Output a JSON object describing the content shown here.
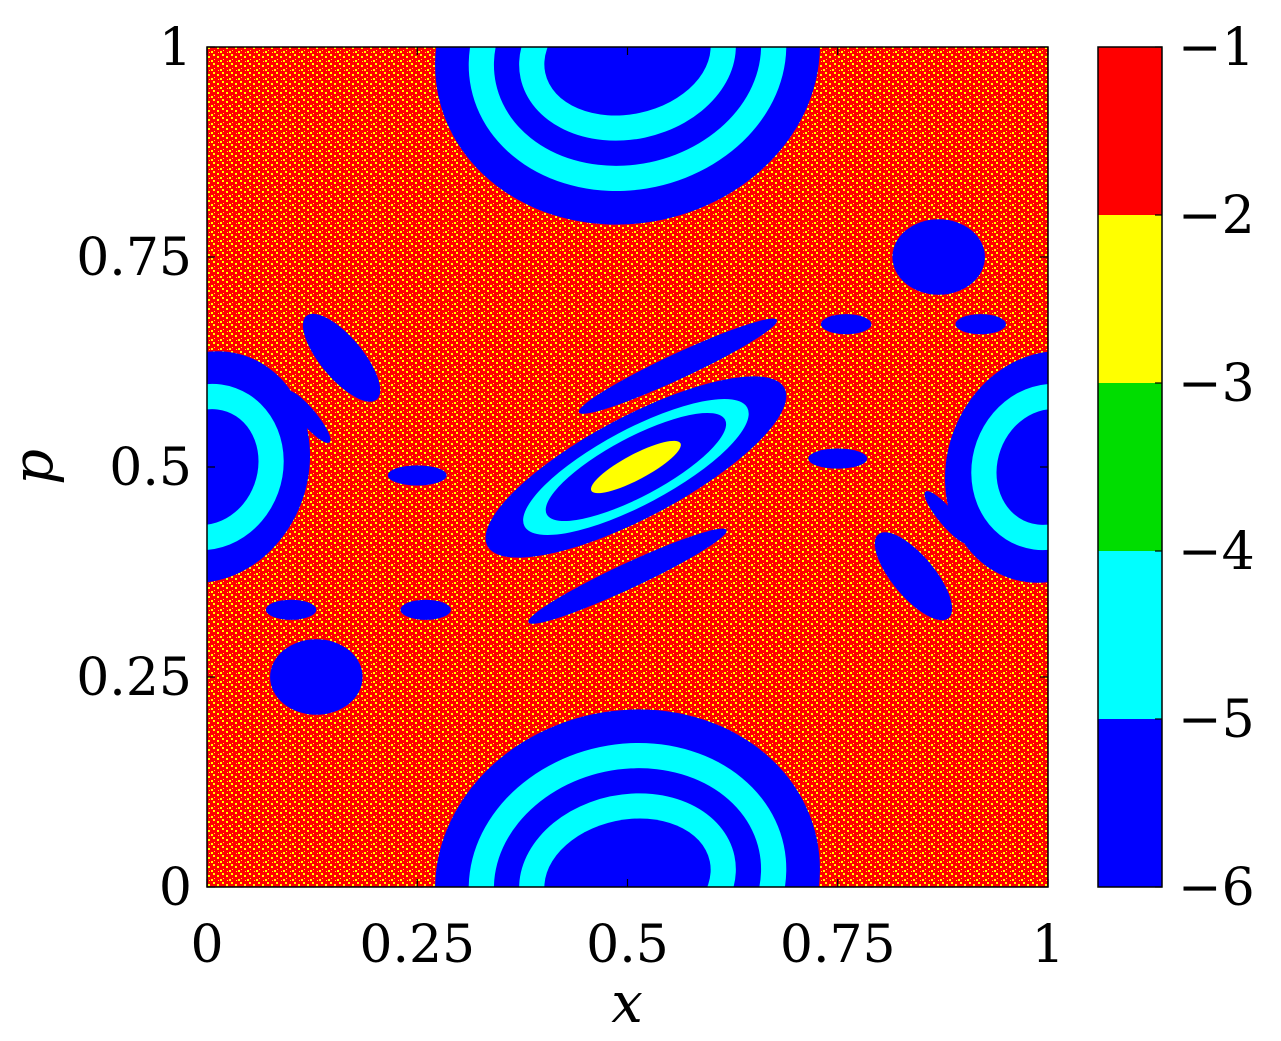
{
  "chart_data": {
    "type": "heatmap",
    "title": "",
    "xlabel": "x",
    "ylabel": "p",
    "xlim": [
      0,
      1
    ],
    "ylim": [
      0,
      1
    ],
    "x_ticks": [
      {
        "value": 0,
        "label": "0"
      },
      {
        "value": 0.25,
        "label": "0.25"
      },
      {
        "value": 0.5,
        "label": "0.5"
      },
      {
        "value": 0.75,
        "label": "0.75"
      },
      {
        "value": 1,
        "label": "1"
      }
    ],
    "y_ticks": [
      {
        "value": 0,
        "label": "0"
      },
      {
        "value": 0.25,
        "label": "0.25"
      },
      {
        "value": 0.5,
        "label": "0.5"
      },
      {
        "value": 0.75,
        "label": "0.75"
      },
      {
        "value": 1,
        "label": "1"
      }
    ],
    "colorbar": {
      "range": [
        -6,
        -1
      ],
      "ticks": [
        {
          "value": -1,
          "label": "−1"
        },
        {
          "value": -2,
          "label": "−2"
        },
        {
          "value": -3,
          "label": "−3"
        },
        {
          "value": -4,
          "label": "−4"
        },
        {
          "value": -5,
          "label": "−5"
        },
        {
          "value": -6,
          "label": "−6"
        }
      ],
      "bands": [
        {
          "from": -2,
          "to": -1,
          "color": "#ff0000"
        },
        {
          "from": -3,
          "to": -2,
          "color": "#ffff00"
        },
        {
          "from": -4,
          "to": -3,
          "color": "#00dd00"
        },
        {
          "from": -5,
          "to": -4,
          "color": "#00ffff"
        },
        {
          "from": -6,
          "to": -5,
          "color": "#0000ff"
        }
      ]
    },
    "background": {
      "level": -1.5,
      "color": "#ff0000",
      "speckle_color": "#ffff00"
    },
    "regions": [
      {
        "shape": "ellipse",
        "cx": 0.5,
        "cy": 0.99,
        "rx": 0.23,
        "ry": 0.2,
        "angle": 12,
        "level": -5.5
      },
      {
        "shape": "ellipse",
        "cx": 0.5,
        "cy": 0.99,
        "rx": 0.19,
        "ry": 0.16,
        "angle": 12,
        "level": -4.5
      },
      {
        "shape": "ellipse",
        "cx": 0.5,
        "cy": 0.99,
        "rx": 0.16,
        "ry": 0.13,
        "angle": 12,
        "level": -5.5
      },
      {
        "shape": "ellipse",
        "cx": 0.5,
        "cy": 0.99,
        "rx": 0.13,
        "ry": 0.1,
        "angle": 12,
        "level": -4.5
      },
      {
        "shape": "ellipse",
        "cx": 0.5,
        "cy": 0.99,
        "rx": 0.1,
        "ry": 0.07,
        "angle": 12,
        "level": -5.5
      },
      {
        "shape": "ellipse",
        "cx": 0.5,
        "cy": 0.01,
        "rx": 0.23,
        "ry": 0.2,
        "angle": 12,
        "level": -5.5
      },
      {
        "shape": "ellipse",
        "cx": 0.5,
        "cy": 0.01,
        "rx": 0.19,
        "ry": 0.16,
        "angle": 12,
        "level": -4.5
      },
      {
        "shape": "ellipse",
        "cx": 0.5,
        "cy": 0.01,
        "rx": 0.16,
        "ry": 0.13,
        "angle": 12,
        "level": -5.5
      },
      {
        "shape": "ellipse",
        "cx": 0.5,
        "cy": 0.01,
        "rx": 0.13,
        "ry": 0.1,
        "angle": 12,
        "level": -4.5
      },
      {
        "shape": "ellipse",
        "cx": 0.5,
        "cy": 0.01,
        "rx": 0.1,
        "ry": 0.07,
        "angle": 12,
        "level": -5.5
      },
      {
        "shape": "ellipse",
        "cx": 0.51,
        "cy": 0.5,
        "rx": 0.2,
        "ry": 0.06,
        "angle": 28,
        "level": -5.5
      },
      {
        "shape": "ellipse",
        "cx": 0.51,
        "cy": 0.5,
        "rx": 0.15,
        "ry": 0.045,
        "angle": 28,
        "level": -4.5
      },
      {
        "shape": "ellipse",
        "cx": 0.51,
        "cy": 0.5,
        "rx": 0.12,
        "ry": 0.035,
        "angle": 28,
        "level": -5.5
      },
      {
        "shape": "ellipse",
        "cx": 0.51,
        "cy": 0.5,
        "rx": 0.06,
        "ry": 0.015,
        "angle": 28,
        "level": -2.5
      },
      {
        "shape": "ellipse",
        "cx": 0.0,
        "cy": 0.5,
        "rx": 0.12,
        "ry": 0.14,
        "angle": -20,
        "level": -5.5
      },
      {
        "shape": "ellipse",
        "cx": 0.0,
        "cy": 0.5,
        "rx": 0.09,
        "ry": 0.1,
        "angle": -20,
        "level": -4.5
      },
      {
        "shape": "ellipse",
        "cx": 0.0,
        "cy": 0.5,
        "rx": 0.06,
        "ry": 0.07,
        "angle": -20,
        "level": -5.5
      },
      {
        "shape": "ellipse",
        "cx": 1.0,
        "cy": 0.5,
        "rx": 0.12,
        "ry": 0.14,
        "angle": -20,
        "level": -5.5
      },
      {
        "shape": "ellipse",
        "cx": 1.0,
        "cy": 0.5,
        "rx": 0.09,
        "ry": 0.1,
        "angle": -20,
        "level": -4.5
      },
      {
        "shape": "ellipse",
        "cx": 1.0,
        "cy": 0.5,
        "rx": 0.06,
        "ry": 0.07,
        "angle": -20,
        "level": -5.5
      },
      {
        "shape": "ellipse",
        "cx": 0.16,
        "cy": 0.63,
        "rx": 0.065,
        "ry": 0.025,
        "angle": -50,
        "level": -5.5
      },
      {
        "shape": "ellipse",
        "cx": 0.84,
        "cy": 0.37,
        "rx": 0.065,
        "ry": 0.025,
        "angle": -50,
        "level": -5.5
      },
      {
        "shape": "ellipse",
        "cx": 0.56,
        "cy": 0.62,
        "rx": 0.13,
        "ry": 0.015,
        "angle": 25,
        "level": -5.5
      },
      {
        "shape": "ellipse",
        "cx": 0.5,
        "cy": 0.37,
        "rx": 0.13,
        "ry": 0.015,
        "angle": 25,
        "level": -5.5
      },
      {
        "shape": "ellipse",
        "cx": 0.13,
        "cy": 0.25,
        "rx": 0.055,
        "ry": 0.045,
        "angle": 0,
        "level": -5.5
      },
      {
        "shape": "ellipse",
        "cx": 0.87,
        "cy": 0.75,
        "rx": 0.055,
        "ry": 0.045,
        "angle": 0,
        "level": -5.5
      },
      {
        "shape": "ellipse",
        "cx": 0.25,
        "cy": 0.49,
        "rx": 0.035,
        "ry": 0.012,
        "angle": 0,
        "level": -5.5
      },
      {
        "shape": "ellipse",
        "cx": 0.75,
        "cy": 0.51,
        "rx": 0.035,
        "ry": 0.012,
        "angle": 0,
        "level": -5.5
      },
      {
        "shape": "ellipse",
        "cx": 0.26,
        "cy": 0.33,
        "rx": 0.03,
        "ry": 0.012,
        "angle": 0,
        "level": -5.5
      },
      {
        "shape": "ellipse",
        "cx": 0.76,
        "cy": 0.67,
        "rx": 0.03,
        "ry": 0.012,
        "angle": 0,
        "level": -5.5
      },
      {
        "shape": "ellipse",
        "cx": 0.1,
        "cy": 0.33,
        "rx": 0.03,
        "ry": 0.012,
        "angle": 0,
        "level": -5.5
      },
      {
        "shape": "ellipse",
        "cx": 0.92,
        "cy": 0.67,
        "rx": 0.03,
        "ry": 0.012,
        "angle": 0,
        "level": -5.5
      },
      {
        "shape": "ellipse",
        "cx": 0.12,
        "cy": 0.56,
        "rx": 0.04,
        "ry": 0.01,
        "angle": -50,
        "level": -5.5
      },
      {
        "shape": "ellipse",
        "cx": 0.88,
        "cy": 0.44,
        "rx": 0.04,
        "ry": 0.01,
        "angle": -50,
        "level": -5.5
      }
    ]
  }
}
